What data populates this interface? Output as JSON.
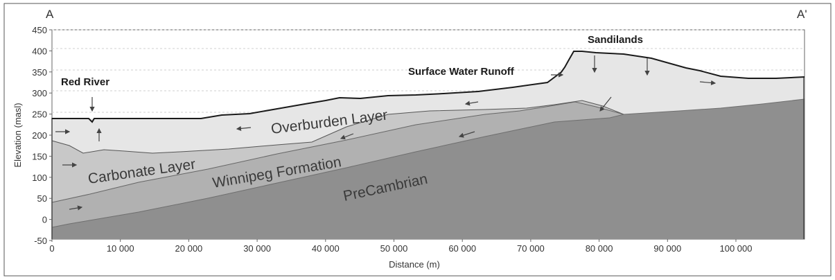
{
  "section": {
    "start_label": "A",
    "end_label": "A'"
  },
  "axes": {
    "x_title": "Distance (m)",
    "y_title": "Elevation (masl)",
    "x_ticks": [
      "0",
      "10 000",
      "20 000",
      "30 000",
      "40 000",
      "50 000",
      "60 000",
      "70 000",
      "80 000",
      "90 000",
      "100 000"
    ],
    "y_ticks": [
      "-50",
      "0",
      "50",
      "100",
      "150",
      "200",
      "250",
      "300",
      "350",
      "400",
      "450"
    ]
  },
  "annotations": {
    "red_river": "Red River",
    "surface_water_runoff": "Surface Water Runoff",
    "sandilands": "Sandilands"
  },
  "layers": {
    "overburden": "Overburden Layer",
    "carbonate": "Carbonate Layer",
    "winnipeg": "Winnipeg Formation",
    "precambrian": "PreCambrian"
  },
  "colors": {
    "overburden": "#e6e6e6",
    "carbonate": "#c8c8c8",
    "winnipeg": "#b1b1b1",
    "precambrian": "#8f8f8f",
    "surface": "#1a1a1a"
  }
}
